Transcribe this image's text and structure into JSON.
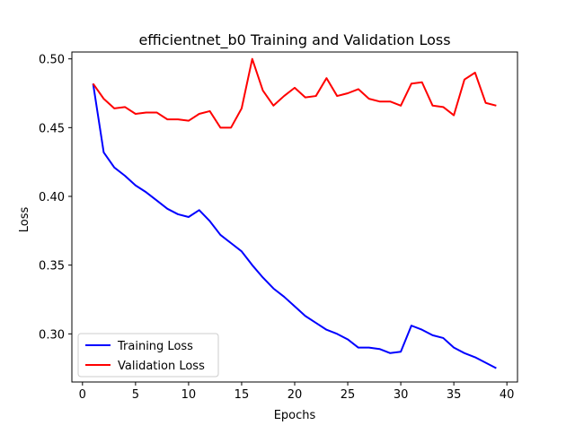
{
  "chart_data": {
    "type": "line",
    "title": "efficientnet_b0 Training and Validation Loss",
    "xlabel": "Epochs",
    "ylabel": "Loss",
    "xlim": [
      -1,
      41
    ],
    "ylim": [
      0.265,
      0.505
    ],
    "xticks": [
      0,
      5,
      10,
      15,
      20,
      25,
      30,
      35,
      40
    ],
    "xtick_labels": [
      "0",
      "5",
      "10",
      "15",
      "20",
      "25",
      "30",
      "35",
      "40"
    ],
    "yticks": [
      0.3,
      0.35,
      0.4,
      0.45,
      0.5
    ],
    "ytick_labels": [
      "0.30",
      "0.35",
      "0.40",
      "0.45",
      "0.50"
    ],
    "grid": false,
    "legend_position": "lower-left",
    "x": [
      1,
      2,
      3,
      4,
      5,
      6,
      7,
      8,
      9,
      10,
      11,
      12,
      13,
      14,
      15,
      16,
      17,
      18,
      19,
      20,
      21,
      22,
      23,
      24,
      25,
      26,
      27,
      28,
      29,
      30,
      31,
      32,
      33,
      34,
      35,
      36,
      37,
      38,
      39
    ],
    "series": [
      {
        "name": "Training Loss",
        "color": "#0000ff",
        "values": [
          0.482,
          0.432,
          0.421,
          0.415,
          0.408,
          0.403,
          0.397,
          0.391,
          0.387,
          0.385,
          0.39,
          0.382,
          0.372,
          0.366,
          0.36,
          0.35,
          0.341,
          0.333,
          0.327,
          0.32,
          0.313,
          0.308,
          0.303,
          0.3,
          0.296,
          0.29,
          0.29,
          0.289,
          0.286,
          0.287,
          0.306,
          0.303,
          0.299,
          0.297,
          0.29,
          0.286,
          0.283,
          0.279,
          0.275
        ]
      },
      {
        "name": "Validation Loss",
        "color": "#ff0000",
        "values": [
          0.482,
          0.471,
          0.464,
          0.465,
          0.46,
          0.461,
          0.461,
          0.456,
          0.456,
          0.455,
          0.46,
          0.462,
          0.45,
          0.45,
          0.464,
          0.5,
          0.477,
          0.466,
          0.473,
          0.479,
          0.472,
          0.473,
          0.486,
          0.473,
          0.475,
          0.478,
          0.471,
          0.469,
          0.469,
          0.466,
          0.482,
          0.483,
          0.466,
          0.465,
          0.459,
          0.485,
          0.49,
          0.468,
          0.466
        ]
      }
    ]
  }
}
